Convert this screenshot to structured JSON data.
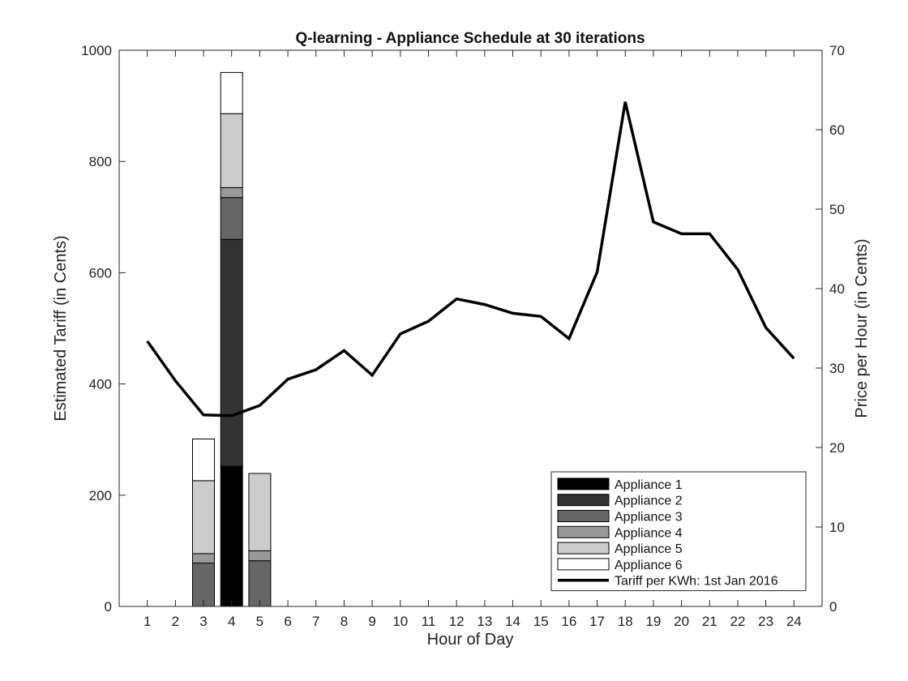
{
  "chart_data": {
    "type": "bar",
    "stacked": true,
    "title": "Q-learning - Appliance Schedule at 30 iterations",
    "xlabel": "Hour of Day",
    "ylabel": "Estimated Tariff (in Cents)",
    "y2label": "Price per Hour (in Cents)",
    "categories": [
      "1",
      "2",
      "3",
      "4",
      "5",
      "6",
      "7",
      "8",
      "9",
      "10",
      "11",
      "12",
      "13",
      "14",
      "15",
      "16",
      "17",
      "18",
      "19",
      "20",
      "21",
      "22",
      "23",
      "24"
    ],
    "ylim": [
      0,
      1000
    ],
    "y2lim": [
      0,
      70
    ],
    "yticks": [
      0,
      200,
      400,
      600,
      800,
      1000
    ],
    "y2ticks": [
      0,
      10,
      20,
      30,
      40,
      50,
      60,
      70
    ],
    "grid": false,
    "legend_position": "bottom-right",
    "series": [
      {
        "name": "Appliance 1",
        "color": "#000000",
        "values": [
          0,
          0,
          0,
          252,
          0,
          0,
          0,
          0,
          0,
          0,
          0,
          0,
          0,
          0,
          0,
          0,
          0,
          0,
          0,
          0,
          0,
          0,
          0,
          0
        ]
      },
      {
        "name": "Appliance 2",
        "color": "#333333",
        "values": [
          0,
          0,
          0,
          408,
          0,
          0,
          0,
          0,
          0,
          0,
          0,
          0,
          0,
          0,
          0,
          0,
          0,
          0,
          0,
          0,
          0,
          0,
          0,
          0
        ]
      },
      {
        "name": "Appliance 3",
        "color": "#666666",
        "values": [
          0,
          0,
          78,
          75,
          82,
          0,
          0,
          0,
          0,
          0,
          0,
          0,
          0,
          0,
          0,
          0,
          0,
          0,
          0,
          0,
          0,
          0,
          0,
          0
        ]
      },
      {
        "name": "Appliance 4",
        "color": "#999999",
        "values": [
          0,
          0,
          17,
          18,
          18,
          0,
          0,
          0,
          0,
          0,
          0,
          0,
          0,
          0,
          0,
          0,
          0,
          0,
          0,
          0,
          0,
          0,
          0,
          0
        ]
      },
      {
        "name": "Appliance 5",
        "color": "#cccccc",
        "values": [
          0,
          0,
          131,
          133,
          139,
          0,
          0,
          0,
          0,
          0,
          0,
          0,
          0,
          0,
          0,
          0,
          0,
          0,
          0,
          0,
          0,
          0,
          0,
          0
        ]
      },
      {
        "name": "Appliance 6",
        "color": "#ffffff",
        "values": [
          0,
          0,
          75,
          74,
          0,
          0,
          0,
          0,
          0,
          0,
          0,
          0,
          0,
          0,
          0,
          0,
          0,
          0,
          0,
          0,
          0,
          0,
          0,
          0
        ]
      }
    ],
    "line_series": {
      "name": "Tariff per KWh: 1st Jan 2016",
      "axis": "right",
      "color": "#000000",
      "values": [
        33.4,
        28.4,
        24.1,
        24.0,
        25.3,
        28.6,
        29.8,
        32.2,
        29.1,
        34.3,
        35.9,
        38.7,
        38.0,
        36.9,
        36.5,
        33.7,
        42.1,
        63.5,
        48.4,
        46.9,
        46.9,
        42.4,
        35.1,
        31.2
      ]
    }
  }
}
